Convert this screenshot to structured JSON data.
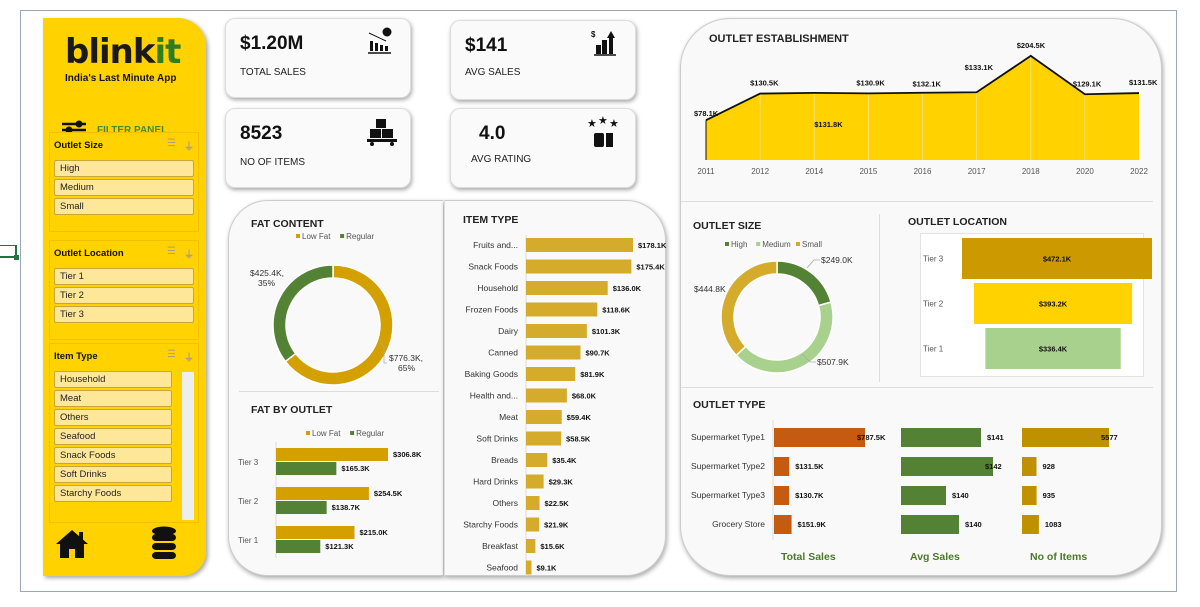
{
  "brand": {
    "logo_main": "blink",
    "logo_accent": "it",
    "tagline": "India's Last Minute App",
    "filter_panel_label": "FILTER PANEL"
  },
  "slicers": [
    {
      "title": "Outlet Size",
      "items": [
        "High",
        "Medium",
        "Small"
      ]
    },
    {
      "title": "Outlet Location",
      "items": [
        "Tier 1",
        "Tier 2",
        "Tier 3"
      ]
    },
    {
      "title": "Item Type",
      "items": [
        "Household",
        "Meat",
        "Others",
        "Seafood",
        "Snack Foods",
        "Soft Drinks",
        "Starchy Foods"
      ]
    }
  ],
  "kpis": [
    {
      "value": "$1.20M",
      "label": "TOTAL SALES",
      "icon": "sales-chart-icon"
    },
    {
      "value": "$141",
      "label": "AVG SALES",
      "icon": "growth-bars-icon"
    },
    {
      "value": "8523",
      "label": "NO OF ITEMS",
      "icon": "boxes-pallet-icon"
    },
    {
      "value": "4.0",
      "label": "AVG RATING",
      "icon": "rating-thumbs-icon"
    }
  ],
  "colors": {
    "brand_yellow": "#ffd200",
    "low_fat": "#d4a000",
    "regular": "#548235",
    "item_bar": "#d4ab2a",
    "medium": "#a9d18e",
    "outlet_type_sales": "#c55a11",
    "outlet_type_avg": "#548235",
    "outlet_type_items": "#bf9000"
  },
  "chart_data": [
    {
      "id": "fat_content",
      "type": "pie",
      "title": "FAT CONTENT",
      "legend": [
        "Low Fat",
        "Regular"
      ],
      "legend_position": "top",
      "categories": [
        "Low Fat",
        "Regular"
      ],
      "values": [
        776.3,
        425.4
      ],
      "percents": [
        65,
        35
      ],
      "labels": [
        "$776.3K,",
        "$425.4K,"
      ],
      "pct_labels": [
        "65%",
        "35%"
      ]
    },
    {
      "id": "fat_by_outlet",
      "type": "bar",
      "title": "FAT BY OUTLET",
      "legend": [
        "Low Fat",
        "Regular"
      ],
      "legend_position": "top",
      "categories": [
        "Tier 3",
        "Tier 2",
        "Tier 1"
      ],
      "series": [
        {
          "name": "Low Fat",
          "values": [
            306.8,
            254.5,
            215.0
          ],
          "labels": [
            "$306.8K",
            "$254.5K",
            "$215.0K"
          ]
        },
        {
          "name": "Regular",
          "values": [
            165.3,
            138.7,
            121.3
          ],
          "labels": [
            "$165.3K",
            "$138.7K",
            "$121.3K"
          ]
        }
      ]
    },
    {
      "id": "item_type",
      "type": "bar",
      "title": "ITEM TYPE",
      "categories": [
        "Fruits and...",
        "Snack Foods",
        "Household",
        "Frozen Foods",
        "Dairy",
        "Canned",
        "Baking Goods",
        "Health and...",
        "Meat",
        "Soft Drinks",
        "Breads",
        "Hard Drinks",
        "Others",
        "Starchy Foods",
        "Breakfast",
        "Seafood"
      ],
      "values": [
        178.1,
        175.4,
        136.0,
        118.6,
        101.3,
        90.7,
        81.9,
        68.0,
        59.4,
        58.5,
        35.4,
        29.3,
        22.5,
        21.9,
        15.6,
        9.1
      ],
      "labels": [
        "$178.1K",
        "$175.4K",
        "$136.0K",
        "$118.6K",
        "$101.3K",
        "$90.7K",
        "$81.9K",
        "$68.0K",
        "$59.4K",
        "$58.5K",
        "$35.4K",
        "$29.3K",
        "$22.5K",
        "$21.9K",
        "$15.6K",
        "$9.1K"
      ]
    },
    {
      "id": "outlet_establishment",
      "type": "area",
      "title": "OUTLET ESTABLISHMENT",
      "x": [
        "2011",
        "2012",
        "2014",
        "2015",
        "2016",
        "2017",
        "2018",
        "2020",
        "2022"
      ],
      "values": [
        78.1,
        130.5,
        131.8,
        130.9,
        132.1,
        133.1,
        204.5,
        129.1,
        131.5
      ],
      "labels": [
        "$78.1K",
        "$130.5K",
        "$131.8K",
        "$130.9K",
        "$132.1K",
        "$133.1K",
        "$204.5K",
        "$129.1K",
        "$131.5K"
      ],
      "ylim": [
        0,
        220
      ]
    },
    {
      "id": "outlet_size",
      "type": "pie",
      "title": "OUTLET  SIZE",
      "legend": [
        "High",
        "Medium",
        "Small"
      ],
      "legend_position": "top",
      "categories": [
        "High",
        "Medium",
        "Small"
      ],
      "values": [
        249.0,
        507.9,
        444.8
      ],
      "labels": [
        "$249.0K",
        "$507.9K",
        "$444.8K"
      ]
    },
    {
      "id": "outlet_location",
      "type": "bar",
      "title": "OUTLET  LOCATION",
      "categories": [
        "Tier 3",
        "Tier 2",
        "Tier 1"
      ],
      "values": [
        472.1,
        393.2,
        336.4
      ],
      "labels": [
        "$472.1K",
        "$393.2K",
        "$336.4K"
      ]
    },
    {
      "id": "outlet_type",
      "type": "table",
      "title": "OUTLET  TYPE",
      "categories": [
        "Supermarket Type1",
        "Supermarket Type2",
        "Supermarket Type3",
        "Grocery Store"
      ],
      "series": [
        {
          "name": "Total Sales",
          "values": [
            787.5,
            131.5,
            130.7,
            151.9
          ],
          "labels": [
            "$787.5K",
            "$131.5K",
            "$130.7K",
            "$151.9K"
          ]
        },
        {
          "name": "Avg Sales",
          "values": [
            141,
            142,
            140,
            140
          ],
          "labels": [
            "$141",
            "$142",
            "$140",
            "$140"
          ]
        },
        {
          "name": "No of Items",
          "values": [
            5577,
            928,
            935,
            1083
          ],
          "labels": [
            "5577",
            "928",
            "935",
            "1083"
          ]
        }
      ]
    }
  ]
}
